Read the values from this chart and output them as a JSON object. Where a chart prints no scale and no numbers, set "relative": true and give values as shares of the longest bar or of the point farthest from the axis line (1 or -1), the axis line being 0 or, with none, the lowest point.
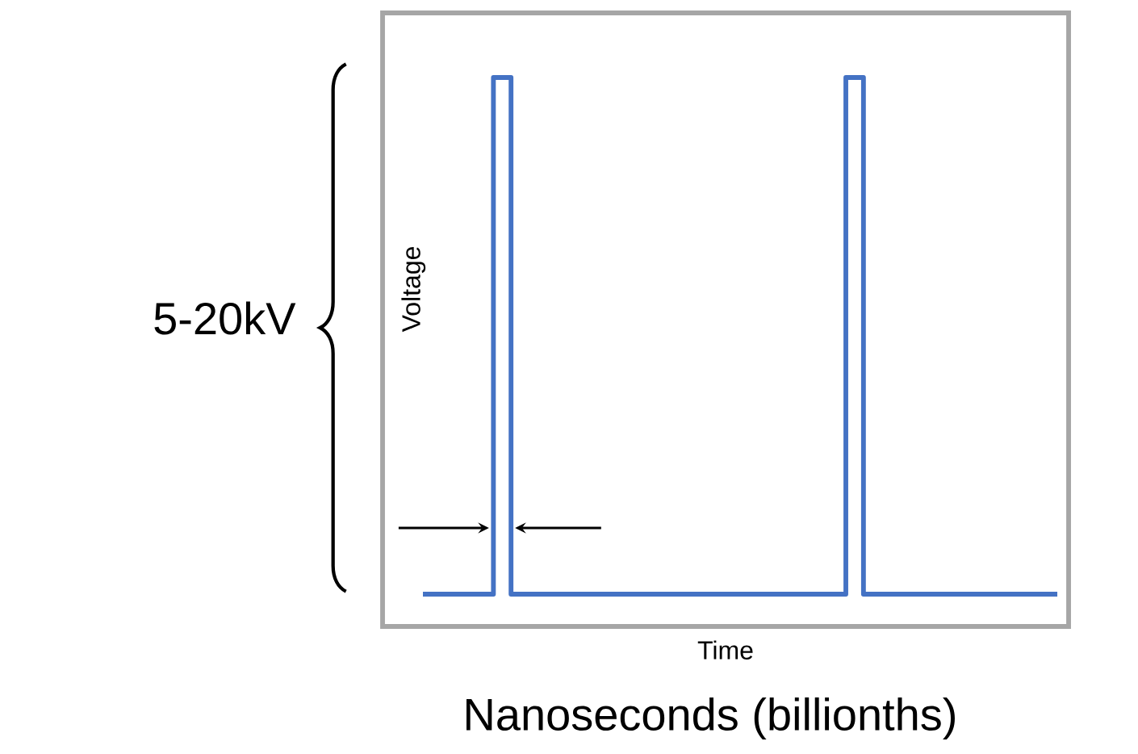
{
  "chart_data": {
    "type": "step",
    "relative": true,
    "xlabel": "Time",
    "ylabel": "Voltage",
    "categories": [
      null,
      null,
      null,
      null,
      null,
      null,
      null,
      null,
      null,
      null,
      null,
      null,
      null,
      null,
      null,
      null,
      null,
      null,
      null,
      null,
      null,
      null,
      null,
      null,
      null,
      null,
      null,
      null,
      null,
      null,
      null,
      null,
      null,
      null,
      null,
      null,
      null
    ],
    "series": [
      {
        "color": "#4472c4",
        "values": [
          0,
          0,
          0,
          0,
          1,
          0,
          0,
          0,
          0,
          0,
          0,
          0,
          0,
          0,
          0,
          0,
          0,
          0,
          0,
          0,
          0,
          0,
          0,
          0,
          1,
          0,
          0,
          0,
          0,
          0,
          0,
          0,
          0,
          0,
          0,
          0,
          0
        ]
      }
    ],
    "annotations": [
      "5-20kV",
      "Nanoseconds (billionths)"
    ]
  }
}
